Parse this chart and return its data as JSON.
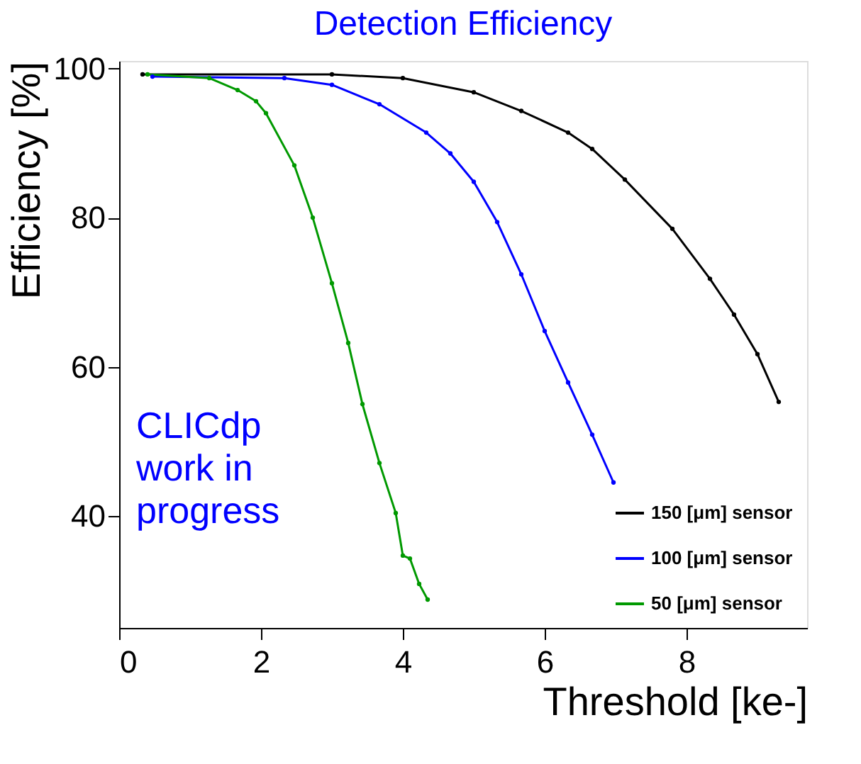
{
  "chart_data": {
    "type": "line",
    "title": "Detection Efficiency",
    "xlabel": "Threshold [ke-]",
    "ylabel": "Efficiency [%]",
    "annotations": [
      "CLICdp\nwork in\nprogress"
    ],
    "xlim": [
      0,
      9.7
    ],
    "ylim": [
      25,
      101
    ],
    "xticks": [
      0,
      2,
      4,
      6,
      8
    ],
    "yticks": [
      40,
      60,
      80,
      100
    ],
    "grid": false,
    "legend": "bottom right",
    "marker": "circle",
    "line_style": "solid",
    "series": [
      {
        "name": "150 [μm] sensor",
        "color": "#000000",
        "x": [
          0.33,
          3.0,
          4.0,
          5.0,
          5.67,
          6.33,
          6.67,
          7.13,
          7.8,
          8.33,
          8.67,
          9.0,
          9.3
        ],
        "values": [
          99.2,
          99.2,
          98.7,
          96.8,
          94.3,
          91.4,
          89.2,
          85.1,
          78.5,
          71.8,
          67.0,
          61.7,
          55.3
        ]
      },
      {
        "name": "100 [μm] sensor",
        "color": "#0000ff",
        "x": [
          0.47,
          2.33,
          3.0,
          3.67,
          4.33,
          4.67,
          5.0,
          5.33,
          5.67,
          6.0,
          6.33,
          6.67,
          6.97
        ],
        "values": [
          98.9,
          98.7,
          97.8,
          95.2,
          91.4,
          88.6,
          84.8,
          79.4,
          72.4,
          64.8,
          57.9,
          50.9,
          44.5
        ]
      },
      {
        "name": "50 [μm] sensor",
        "color": "#009900",
        "x": [
          0.4,
          1.27,
          1.67,
          1.93,
          2.07,
          2.47,
          2.73,
          3.0,
          3.23,
          3.43,
          3.67,
          3.9,
          4.0,
          4.1,
          4.23,
          4.35
        ],
        "values": [
          99.2,
          98.7,
          97.1,
          95.6,
          94.0,
          87.0,
          80.0,
          71.2,
          63.2,
          55.0,
          47.1,
          40.4,
          34.7,
          34.3,
          30.9,
          28.8
        ]
      }
    ]
  }
}
